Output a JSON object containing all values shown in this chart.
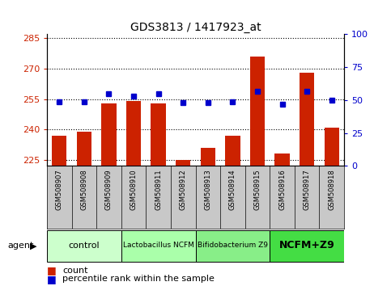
{
  "title": "GDS3813 / 1417923_at",
  "samples": [
    "GSM508907",
    "GSM508908",
    "GSM508909",
    "GSM508910",
    "GSM508911",
    "GSM508912",
    "GSM508913",
    "GSM508914",
    "GSM508915",
    "GSM508916",
    "GSM508917",
    "GSM508918"
  ],
  "counts": [
    237,
    239,
    253,
    254,
    253,
    225,
    231,
    237,
    276,
    228,
    268,
    241
  ],
  "percentiles": [
    49,
    49,
    55,
    53,
    55,
    48,
    48,
    49,
    57,
    47,
    57,
    50
  ],
  "ylim_left": [
    222,
    287
  ],
  "ylim_right": [
    0,
    100
  ],
  "yticks_left": [
    225,
    240,
    255,
    270,
    285
  ],
  "yticks_right": [
    0,
    25,
    50,
    75,
    100
  ],
  "bar_color": "#cc2200",
  "dot_color": "#0000cc",
  "bg_xlabel": "#c8c8c8",
  "agent_groups": [
    {
      "label": "control",
      "start": 0,
      "end": 2,
      "color": "#ccffcc",
      "fontsize": 8,
      "bold": false
    },
    {
      "label": "Lactobacillus NCFM",
      "start": 3,
      "end": 5,
      "color": "#aaffaa",
      "fontsize": 6.5,
      "bold": false
    },
    {
      "label": "Bifidobacterium Z9",
      "start": 6,
      "end": 8,
      "color": "#88ee88",
      "fontsize": 6.5,
      "bold": false
    },
    {
      "label": "NCFM+Z9",
      "start": 9,
      "end": 11,
      "color": "#44dd44",
      "fontsize": 9,
      "bold": true
    }
  ],
  "legend_count_color": "#cc2200",
  "legend_dot_color": "#0000cc",
  "tick_color_left": "#cc2200",
  "tick_color_right": "#0000cc",
  "bar_bottom": 222
}
